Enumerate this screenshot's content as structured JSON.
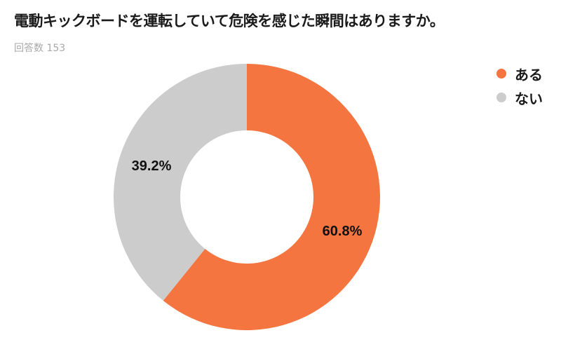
{
  "title": "電動キックボードを運転していて危険を感じた瞬間はありますか。",
  "subtitle": "回答数 153",
  "legend": [
    {
      "label": "ある",
      "color": "#f47540"
    },
    {
      "label": "ない",
      "color": "#cccccc"
    }
  ],
  "labels": {
    "yes_pct": "60.8%",
    "no_pct": "39.2%"
  },
  "chart_data": {
    "type": "pie",
    "subtype": "donut",
    "title": "電動キックボードを運転していて危険を感じた瞬間はありますか。",
    "subtitle": "回答数 153",
    "categories": [
      "ある",
      "ない"
    ],
    "values": [
      60.8,
      39.2
    ],
    "unit": "%",
    "colors": [
      "#f47540",
      "#cccccc"
    ],
    "legend_position": "top-right",
    "start_angle": "12 o'clock, clockwise"
  }
}
